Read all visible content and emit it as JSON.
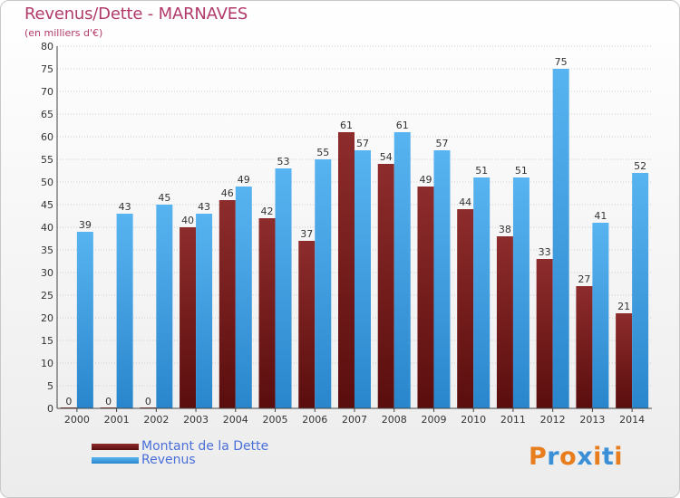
{
  "header": {
    "title": "Revenus/Dette - MARNAVES",
    "subtitle": "(en milliers d'€)"
  },
  "legend": {
    "debt_label": "Montant de la Dette",
    "revenue_label": "Revenus"
  },
  "logo": {
    "text": "Proxiti",
    "letter_colors": [
      "#e87d1e",
      "#3a8fd6",
      "#e87d1e",
      "#3a8fd6",
      "#e87d1e",
      "#3a8fd6",
      "#e87d1e"
    ]
  },
  "colors": {
    "debt": "#7a1d1d",
    "revenue": "#3d9ee0",
    "axis_text": "#333333",
    "grid": "#cfcfcf"
  },
  "chart_data": {
    "type": "bar",
    "title": "Revenus/Dette - MARNAVES",
    "subtitle": "(en milliers d'€)",
    "categories": [
      "2000",
      "2001",
      "2002",
      "2003",
      "2004",
      "2005",
      "2006",
      "2007",
      "2008",
      "2009",
      "2010",
      "2011",
      "2012",
      "2013",
      "2014"
    ],
    "series": [
      {
        "name": "Montant de la Dette",
        "values": [
          0,
          0,
          0,
          40,
          46,
          42,
          37,
          61,
          54,
          49,
          44,
          38,
          33,
          27,
          21
        ]
      },
      {
        "name": "Revenus",
        "values": [
          39,
          43,
          45,
          43,
          49,
          53,
          55,
          57,
          61,
          57,
          51,
          51,
          75,
          41,
          52
        ]
      }
    ],
    "ylim": [
      0,
      80
    ],
    "yticks": [
      0,
      5,
      10,
      15,
      20,
      25,
      30,
      35,
      40,
      45,
      50,
      55,
      60,
      65,
      70,
      75,
      80
    ],
    "grid": true,
    "legend_position": "bottom-left"
  }
}
